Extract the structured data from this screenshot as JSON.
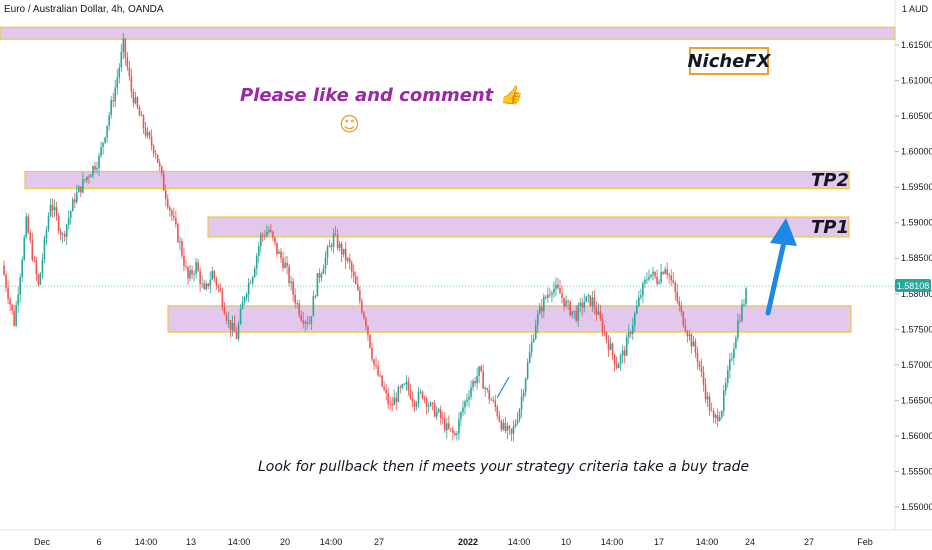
{
  "header": {
    "title": "Euro / Australian Dollar, 4h, OANDA",
    "currency": "1 AUD"
  },
  "annotations": {
    "brand": "NicheFX",
    "like": "Please like and comment 👍",
    "smile": "☺",
    "tp2": "TP2",
    "tp1": "TP1",
    "footer": "Look for pullback then if meets your strategy criteria take a buy trade"
  },
  "current_price": "1.58108",
  "colors": {
    "up": "#26a69a",
    "down": "#ef5350",
    "zone_fill": "#e1c8ec",
    "zone_border": "#f5c542",
    "arrow": "#1e88e5"
  },
  "chart_data": {
    "type": "candlestick",
    "y_ticks": [
      "1.61500",
      "1.61000",
      "1.60500",
      "1.60000",
      "1.59500",
      "1.59000",
      "1.58500",
      "1.58000",
      "1.57500",
      "1.57000",
      "1.56500",
      "1.56000",
      "1.55500",
      "1.55000"
    ],
    "x_ticks": [
      "Dec",
      "6",
      "14:00",
      "13",
      "14:00",
      "20",
      "14:00",
      "27",
      "2022",
      "14:00",
      "10",
      "14:00",
      "17",
      "14:00",
      "24",
      "27",
      "Feb"
    ],
    "ylim": [
      1.545,
      1.62
    ],
    "zones": [
      {
        "name": "top-zone",
        "ylow": 1.6165,
        "yhigh": 1.6175
      },
      {
        "name": "tp2-zone",
        "ylow": 1.5948,
        "yhigh": 1.5972
      },
      {
        "name": "tp1-zone",
        "ylow": 1.588,
        "yhigh": 1.5908
      },
      {
        "name": "support-zone",
        "ylow": 1.5746,
        "yhigh": 1.5783
      }
    ],
    "anchors": [
      [
        0,
        1.584
      ],
      [
        6,
        1.576
      ],
      [
        12,
        1.59
      ],
      [
        18,
        1.581
      ],
      [
        24,
        1.593
      ],
      [
        30,
        1.588
      ],
      [
        36,
        1.5935
      ],
      [
        42,
        1.5965
      ],
      [
        48,
        1.599
      ],
      [
        52,
        1.604
      ],
      [
        56,
        1.609
      ],
      [
        60,
        1.615
      ],
      [
        64,
        1.6085
      ],
      [
        68,
        1.605
      ],
      [
        72,
        1.602
      ],
      [
        76,
        1.6
      ],
      [
        80,
        1.595
      ],
      [
        84,
        1.591
      ],
      [
        88,
        1.587
      ],
      [
        92,
        1.582
      ],
      [
        96,
        1.584
      ],
      [
        100,
        1.58
      ],
      [
        104,
        1.583
      ],
      [
        108,
        1.58
      ],
      [
        112,
        1.576
      ],
      [
        116,
        1.574
      ],
      [
        120,
        1.58
      ],
      [
        124,
        1.583
      ],
      [
        128,
        1.588
      ],
      [
        132,
        1.589
      ],
      [
        136,
        1.586
      ],
      [
        140,
        1.584
      ],
      [
        144,
        1.58
      ],
      [
        148,
        1.577
      ],
      [
        152,
        1.576
      ],
      [
        156,
        1.582
      ],
      [
        160,
        1.585
      ],
      [
        164,
        1.588
      ],
      [
        168,
        1.586
      ],
      [
        172,
        1.584
      ],
      [
        176,
        1.58
      ],
      [
        180,
        1.576
      ],
      [
        184,
        1.57
      ],
      [
        188,
        1.567
      ],
      [
        192,
        1.564
      ],
      [
        196,
        1.566
      ],
      [
        200,
        1.567
      ],
      [
        204,
        1.565
      ],
      [
        208,
        1.566
      ],
      [
        212,
        1.564
      ],
      [
        216,
        1.563
      ],
      [
        220,
        1.561
      ],
      [
        224,
        1.56
      ],
      [
        228,
        1.564
      ],
      [
        232,
        1.567
      ],
      [
        236,
        1.569
      ],
      [
        240,
        1.566
      ],
      [
        244,
        1.564
      ],
      [
        248,
        1.561
      ],
      [
        252,
        1.56
      ],
      [
        256,
        1.564
      ],
      [
        260,
        1.57
      ],
      [
        264,
        1.576
      ],
      [
        268,
        1.579
      ],
      [
        272,
        1.581
      ],
      [
        276,
        1.58
      ],
      [
        280,
        1.578
      ],
      [
        284,
        1.577
      ],
      [
        288,
        1.579
      ],
      [
        292,
        1.579
      ],
      [
        296,
        1.576
      ],
      [
        300,
        1.573
      ],
      [
        304,
        1.57
      ],
      [
        308,
        1.572
      ],
      [
        312,
        1.576
      ],
      [
        316,
        1.58
      ],
      [
        320,
        1.583
      ],
      [
        324,
        1.582
      ],
      [
        328,
        1.584
      ],
      [
        332,
        1.581
      ],
      [
        336,
        1.577
      ],
      [
        340,
        1.574
      ],
      [
        344,
        1.571
      ],
      [
        348,
        1.566
      ],
      [
        352,
        1.562
      ],
      [
        356,
        1.564
      ],
      [
        360,
        1.57
      ],
      [
        364,
        1.576
      ],
      [
        368,
        1.58
      ]
    ]
  }
}
